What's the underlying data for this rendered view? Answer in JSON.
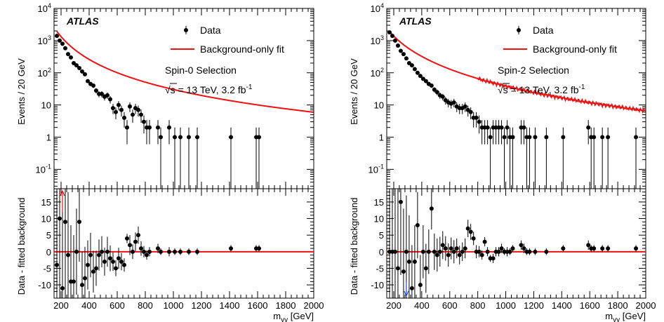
{
  "colors": {
    "fit": "#ee1111",
    "data": "#000000",
    "arrow_left": "#ee1111",
    "arrow_right": "#1f4fe0"
  },
  "chart_data": [
    {
      "type": "scatter",
      "experiment_label": "ATLAS",
      "selection": "Spin-0 Selection",
      "energy_lumi_text": {
        "sqrt": "√s",
        "rest": " = 13 TeV, 3.2 fb",
        "sup": "-1"
      },
      "legend": {
        "data": "Data",
        "fit": "Background-only fit",
        "position": "top-right"
      },
      "ylabel": "Events / 20 GeV",
      "ratio_ylabel": "Data - fitted background",
      "xlabel": {
        "main": "m",
        "sub": "γγ",
        "unit": " [GeV]"
      },
      "xlim": [
        150,
        2000
      ],
      "ylim": [
        0.025,
        10000
      ],
      "yscale": "log",
      "ratio_ylim": [
        -14,
        19
      ],
      "xticks": [
        "200",
        "400",
        "600",
        "800",
        "1000",
        "1200",
        "1400",
        "1600",
        "1800",
        "2000"
      ],
      "yticks": [
        "10^{4}",
        "10^{3}",
        "10^{2}",
        "10",
        "1",
        "10^{-1}"
      ],
      "ratio_yticks": [
        "15",
        "10",
        "5",
        "0",
        "-5",
        "-10"
      ],
      "fit": {
        "A": 1950,
        "x0": 170,
        "p1": 2.35,
        "p2": 0.0
      },
      "x": [
        170,
        190,
        210,
        230,
        250,
        270,
        290,
        310,
        330,
        350,
        370,
        390,
        410,
        430,
        450,
        470,
        490,
        510,
        530,
        550,
        570,
        590,
        610,
        630,
        650,
        670,
        690,
        710,
        730,
        750,
        770,
        790,
        810,
        830,
        890,
        910,
        970,
        1010,
        1050,
        1110,
        1170,
        1410,
        1590,
        1610
      ],
      "y": [
        1400,
        1000,
        800,
        580,
        380,
        300,
        200,
        170,
        140,
        110,
        90,
        55,
        45,
        40,
        28,
        22,
        22,
        18,
        20,
        15,
        8,
        6,
        10,
        7,
        4,
        2,
        9,
        5,
        8,
        7,
        5,
        3,
        2,
        2,
        2,
        1,
        2,
        1,
        1,
        1,
        1,
        1,
        1,
        1
      ],
      "yerr": [
        37,
        32,
        28,
        24,
        19,
        17,
        14,
        13,
        12,
        10,
        9.5,
        7.4,
        6.7,
        6.3,
        5.3,
        4.7,
        4.7,
        4.2,
        4.5,
        3.9,
        2.8,
        2.4,
        3.2,
        2.6,
        2,
        1.4,
        3,
        2.2,
        2.8,
        2.6,
        2.2,
        1.7,
        1.4,
        1.4,
        1.4,
        1,
        1.4,
        1,
        1,
        1,
        1,
        1,
        1,
        1
      ],
      "resid": [
        -4,
        10,
        -11,
        9,
        -1,
        -9,
        -9,
        0,
        9,
        -10,
        -8,
        -4,
        -1,
        -6,
        -5,
        -1,
        0,
        -3,
        0,
        -2,
        -3,
        -5,
        -2,
        -3,
        -4,
        4,
        2,
        0,
        3,
        5,
        1,
        0,
        -1,
        0,
        1,
        0,
        0,
        0,
        0,
        0,
        0,
        1,
        1,
        1
      ],
      "resid_arrows": [
        {
          "x": 210,
          "dir": "up",
          "color_key": "arrow_left"
        }
      ]
    },
    {
      "type": "scatter",
      "experiment_label": "ATLAS",
      "selection": "Spin-2 Selection",
      "energy_lumi_text": {
        "sqrt": "√s",
        "rest": " = 13 TeV, 3.2 fb",
        "sup": "-1"
      },
      "legend": {
        "data": "Data",
        "fit": "Background-only fit",
        "position": "top-right"
      },
      "ylabel": "Events / 20 GeV",
      "ratio_ylabel": "Data - fitted background",
      "xlabel": {
        "main": "m",
        "sub": "γγ",
        "unit": " [GeV]"
      },
      "xlim": [
        150,
        2000
      ],
      "ylim": [
        0.025,
        10000
      ],
      "yscale": "log",
      "ratio_ylim": [
        -14,
        19
      ],
      "xticks": [
        "200",
        "400",
        "600",
        "800",
        "1000",
        "1200",
        "1400",
        "1600",
        "1800",
        "2000"
      ],
      "yticks": [
        "10^{4}",
        "10^{3}",
        "10^{2}",
        "10",
        "1",
        "10^{-1}"
      ],
      "ratio_yticks": [
        "15",
        "10",
        "5",
        "0",
        "-5",
        "-10"
      ],
      "fit": {
        "A": 1900,
        "x0": 170,
        "p1": 1.95,
        "p2": 0.14
      },
      "x": [
        170,
        190,
        210,
        230,
        250,
        270,
        290,
        310,
        330,
        350,
        370,
        390,
        410,
        430,
        450,
        470,
        490,
        510,
        530,
        550,
        570,
        590,
        610,
        630,
        650,
        670,
        690,
        710,
        730,
        750,
        770,
        790,
        810,
        830,
        850,
        870,
        890,
        910,
        930,
        950,
        970,
        990,
        1010,
        1030,
        1050,
        1110,
        1130,
        1150,
        1170,
        1210,
        1290,
        1410,
        1590,
        1610,
        1630,
        1690,
        1730,
        1930
      ],
      "y": [
        1800,
        1400,
        1000,
        700,
        480,
        380,
        280,
        200,
        170,
        130,
        100,
        80,
        65,
        55,
        45,
        40,
        30,
        25,
        20,
        18,
        14,
        12,
        11,
        12,
        9,
        8,
        8,
        9,
        7,
        6,
        4,
        4,
        3,
        2,
        2,
        2,
        1,
        2,
        2,
        2,
        2,
        1,
        2,
        1,
        1,
        2,
        2,
        1,
        1,
        1,
        1,
        1,
        2,
        1,
        1,
        1,
        1,
        1
      ],
      "yerr": [
        42,
        37,
        32,
        26,
        22,
        19,
        17,
        14,
        13,
        11,
        10,
        9,
        8,
        7.4,
        6.7,
        6.3,
        5.5,
        5,
        4.5,
        4.2,
        3.7,
        3.5,
        3.3,
        3.5,
        3,
        2.8,
        2.8,
        3,
        2.6,
        2.4,
        2,
        2,
        1.7,
        1.4,
        1.4,
        1.4,
        1,
        1.4,
        1.4,
        1.4,
        1.4,
        1,
        1.4,
        1,
        1,
        1.4,
        1.4,
        1,
        1,
        1,
        1,
        1,
        1.4,
        1,
        1,
        1,
        1,
        1
      ],
      "resid": [
        0,
        0,
        0,
        -5,
        15,
        -6,
        0,
        -3,
        -11,
        -3,
        8,
        -10,
        0,
        -5,
        0,
        13,
        0,
        -1,
        0,
        2,
        1,
        -1,
        1,
        0,
        1,
        -1,
        0,
        1,
        7,
        6,
        4,
        0,
        0,
        -1,
        3,
        0,
        -2,
        -2,
        0,
        0,
        1,
        0,
        0,
        0,
        1,
        2,
        1,
        0,
        0,
        0,
        0,
        1,
        2,
        1,
        1,
        1,
        1,
        1
      ],
      "resid_arrows": [
        {
          "x": 290,
          "dir": "down",
          "color_key": "arrow_right"
        }
      ]
    }
  ]
}
